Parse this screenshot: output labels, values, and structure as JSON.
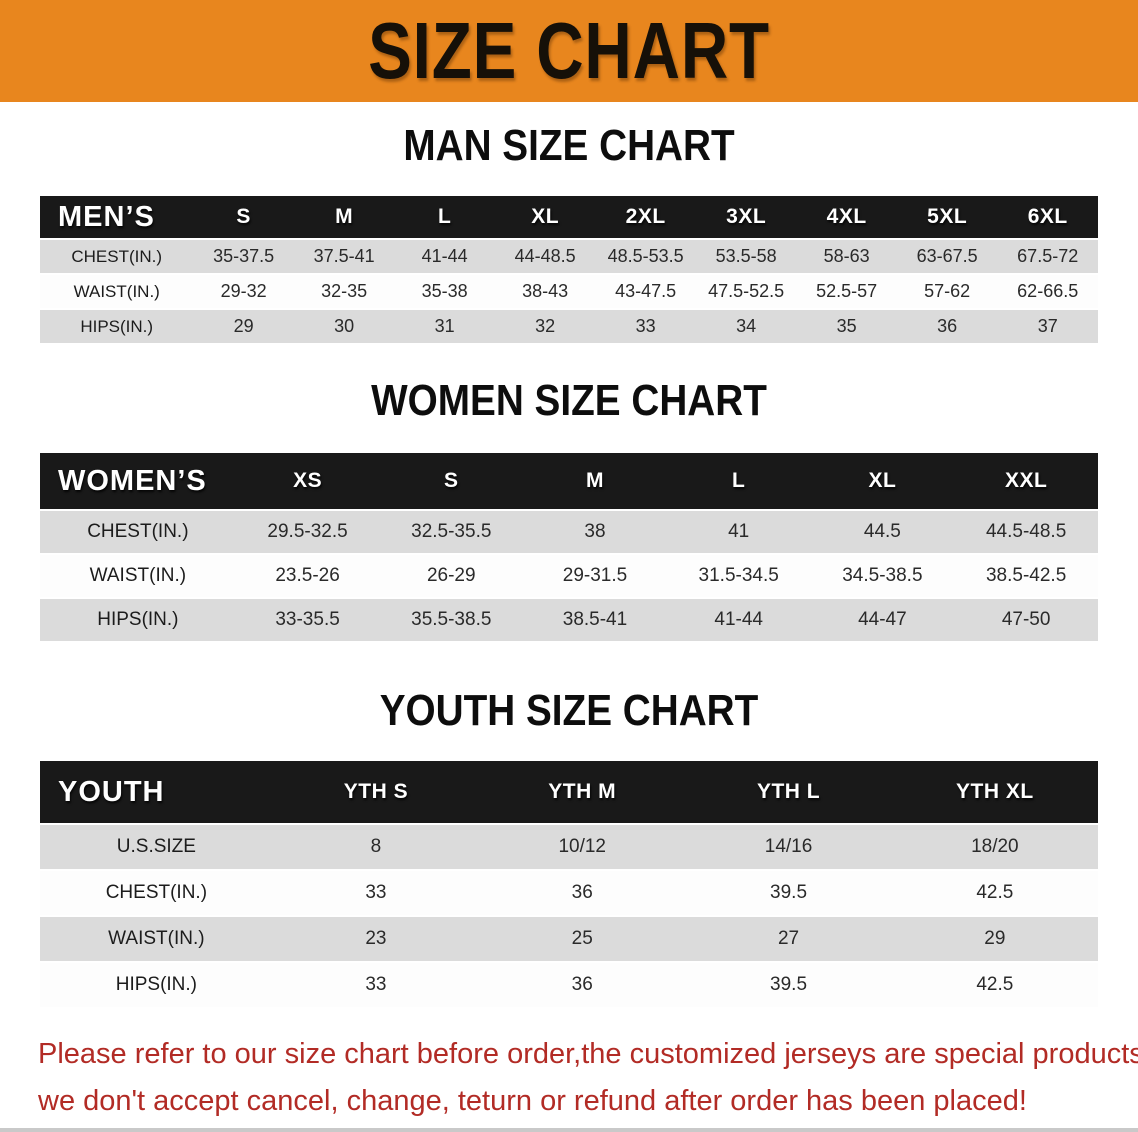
{
  "banner": {
    "title": "SIZE CHART",
    "bg_color": "#E8861E",
    "text_color": "#161008"
  },
  "sections": [
    {
      "id": "men",
      "title": "MAN SIZE CHART",
      "table": {
        "header_label": "MEN’S",
        "columns": [
          "S",
          "M",
          "L",
          "XL",
          "2XL",
          "3XL",
          "4XL",
          "5XL",
          "6XL"
        ],
        "rows": [
          {
            "label": "CHEST(IN.)",
            "values": [
              "35-37.5",
              "37.5-41",
              "41-44",
              "44-48.5",
              "48.5-53.5",
              "53.5-58",
              "58-63",
              "63-67.5",
              "67.5-72"
            ]
          },
          {
            "label": "WAIST(IN.)",
            "values": [
              "29-32",
              "32-35",
              "35-38",
              "38-43",
              "43-47.5",
              "47.5-52.5",
              "52.5-57",
              "57-62",
              "62-66.5"
            ]
          },
          {
            "label": "HIPS(IN.)",
            "values": [
              "29",
              "30",
              "31",
              "32",
              "33",
              "34",
              "35",
              "36",
              "37"
            ]
          }
        ]
      }
    },
    {
      "id": "women",
      "title": "WOMEN SIZE CHART",
      "table": {
        "header_label": "WOMEN’S",
        "columns": [
          "XS",
          "S",
          "M",
          "L",
          "XL",
          "XXL"
        ],
        "rows": [
          {
            "label": "CHEST(IN.)",
            "values": [
              "29.5-32.5",
              "32.5-35.5",
              "38",
              "41",
              "44.5",
              "44.5-48.5"
            ]
          },
          {
            "label": "WAIST(IN.)",
            "values": [
              "23.5-26",
              "26-29",
              "29-31.5",
              "31.5-34.5",
              "34.5-38.5",
              "38.5-42.5"
            ]
          },
          {
            "label": "HIPS(IN.)",
            "values": [
              "33-35.5",
              "35.5-38.5",
              "38.5-41",
              "41-44",
              "44-47",
              "47-50"
            ]
          }
        ]
      }
    },
    {
      "id": "youth",
      "title": "YOUTH SIZE CHART",
      "table": {
        "header_label": "YOUTH",
        "columns": [
          "YTH S",
          "YTH M",
          "YTH L",
          "YTH XL"
        ],
        "rows": [
          {
            "label": "U.S.SIZE",
            "values": [
              "8",
              "10/12",
              "14/16",
              "18/20"
            ]
          },
          {
            "label": "CHEST(IN.)",
            "values": [
              "33",
              "36",
              "39.5",
              "42.5"
            ]
          },
          {
            "label": "WAIST(IN.)",
            "values": [
              "23",
              "25",
              "27",
              "29"
            ]
          },
          {
            "label": "HIPS(IN.)",
            "values": [
              "33",
              "36",
              "39.5",
              "42.5"
            ]
          }
        ]
      }
    }
  ],
  "disclaimer": {
    "line1": "Please refer to our size chart before order,the customized jerseys are special products,",
    "line2": "we don't accept cancel, change, teturn or refund after order has been placed!",
    "color": "#B22B25"
  },
  "colors": {
    "banner_bg": "#E8861E",
    "table_header_band": "#191919",
    "row_gray": "#DBDBDB",
    "row_white": "#FDFDFD",
    "disclaimer_red": "#B22B25"
  }
}
